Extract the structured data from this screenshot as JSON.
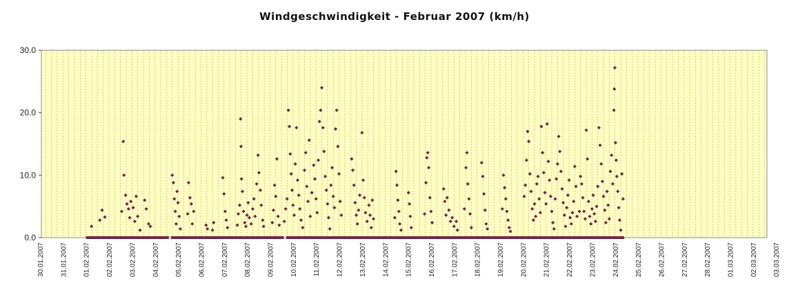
{
  "chart_data": {
    "type": "scatter",
    "title": "Windgeschwindigkeit - Februar 2007 (km/h)",
    "xlabel": "",
    "ylabel": "",
    "ylim": [
      0,
      30
    ],
    "y_ticks": [
      "0.0",
      "10.0",
      "20.0",
      "30.0"
    ],
    "x_tick_labels": [
      "30.01.2007",
      "31.01.2007",
      "01.02.2007",
      "02.02.2007",
      "03.02.2007",
      "04.02.2007",
      "05.02.2007",
      "06.02.2007",
      "07.02.2007",
      "08.02.2007",
      "09.02.2007",
      "10.02.2007",
      "11.02.2007",
      "12.02.2007",
      "13.02.2007",
      "14.02.2007",
      "15.02.2007",
      "16.02.2007",
      "17.02.2007",
      "18.02.2007",
      "19.02.2007",
      "20.02.2007",
      "21.02.2007",
      "22.02.2007",
      "23.02.2007",
      "24.02.2007",
      "25.02.2007",
      "26.02.2007",
      "27.02.2007",
      "28.02.2007",
      "01.03.2007",
      "02.03.2007",
      "03.03.2007"
    ],
    "x_range_days": [
      0,
      32
    ],
    "grid": "vertical dashed every 0.25 day",
    "legend": "none",
    "colors": {
      "plot_background": "#ffffc0",
      "marker": "#7a1f4f",
      "grid": "#a0a0a0"
    },
    "series": [
      {
        "day_offset_values": [
          [
            2.24,
            1.8
          ],
          [
            2.6,
            2.8
          ],
          [
            2.7,
            4.4
          ],
          [
            2.82,
            3.3
          ],
          [
            3.55,
            4.2
          ],
          [
            3.62,
            15.4
          ],
          [
            3.65,
            10.0
          ],
          [
            3.72,
            6.8
          ],
          [
            3.78,
            5.4
          ],
          [
            3.85,
            4.6
          ],
          [
            3.9,
            3.2
          ],
          [
            3.95,
            5.8
          ],
          [
            4.05,
            4.8
          ],
          [
            4.12,
            2.6
          ],
          [
            4.18,
            6.6
          ],
          [
            4.25,
            3.4
          ],
          [
            4.35,
            1.2
          ],
          [
            4.55,
            6.0
          ],
          [
            4.62,
            4.6
          ],
          [
            4.72,
            2.2
          ],
          [
            4.8,
            1.8
          ],
          [
            5.75,
            10.0
          ],
          [
            5.8,
            8.8
          ],
          [
            5.84,
            6.2
          ],
          [
            5.88,
            4.2
          ],
          [
            5.92,
            2.2
          ],
          [
            5.96,
            7.4
          ],
          [
            6.0,
            5.6
          ],
          [
            6.05,
            3.4
          ],
          [
            6.1,
            1.4
          ],
          [
            6.42,
            3.8
          ],
          [
            6.46,
            8.8
          ],
          [
            6.52,
            6.4
          ],
          [
            6.58,
            5.4
          ],
          [
            6.62,
            2.2
          ],
          [
            6.68,
            4.2
          ],
          [
            7.22,
            2.0
          ],
          [
            7.28,
            1.4
          ],
          [
            7.5,
            1.2
          ],
          [
            7.55,
            2.4
          ],
          [
            7.95,
            9.6
          ],
          [
            8.0,
            7.0
          ],
          [
            8.05,
            4.2
          ],
          [
            8.1,
            2.8
          ],
          [
            8.15,
            1.6
          ],
          [
            8.58,
            2.0
          ],
          [
            8.62,
            3.8
          ],
          [
            8.68,
            5.2
          ],
          [
            8.72,
            19.0
          ],
          [
            8.74,
            14.6
          ],
          [
            8.76,
            9.4
          ],
          [
            8.8,
            7.4
          ],
          [
            8.85,
            4.2
          ],
          [
            8.9,
            2.4
          ],
          [
            8.95,
            1.8
          ],
          [
            9.0,
            3.6
          ],
          [
            9.05,
            5.6
          ],
          [
            9.1,
            3.2
          ],
          [
            9.18,
            2.2
          ],
          [
            9.25,
            4.6
          ],
          [
            9.3,
            6.2
          ],
          [
            9.35,
            3.4
          ],
          [
            9.42,
            8.6
          ],
          [
            9.48,
            13.2
          ],
          [
            9.52,
            10.4
          ],
          [
            9.58,
            7.6
          ],
          [
            9.62,
            5.2
          ],
          [
            9.68,
            2.8
          ],
          [
            9.72,
            1.8
          ],
          [
            10.1,
            2.4
          ],
          [
            10.15,
            4.4
          ],
          [
            10.2,
            8.4
          ],
          [
            10.25,
            6.6
          ],
          [
            10.3,
            12.6
          ],
          [
            10.35,
            3.4
          ],
          [
            10.4,
            2.0
          ],
          [
            10.62,
            2.6
          ],
          [
            10.68,
            4.6
          ],
          [
            10.74,
            6.2
          ],
          [
            10.8,
            20.4
          ],
          [
            10.84,
            17.8
          ],
          [
            10.88,
            13.4
          ],
          [
            10.92,
            10.2
          ],
          [
            10.96,
            7.6
          ],
          [
            11.0,
            5.2
          ],
          [
            11.05,
            3.6
          ],
          [
            11.1,
            11.8
          ],
          [
            11.15,
            17.6
          ],
          [
            11.2,
            9.2
          ],
          [
            11.25,
            6.8
          ],
          [
            11.3,
            4.6
          ],
          [
            11.35,
            2.8
          ],
          [
            11.42,
            1.6
          ],
          [
            11.5,
            10.8
          ],
          [
            11.55,
            13.6
          ],
          [
            11.6,
            8.2
          ],
          [
            11.65,
            5.8
          ],
          [
            11.7,
            15.6
          ],
          [
            11.75,
            3.4
          ],
          [
            11.82,
            7.2
          ],
          [
            11.9,
            11.6
          ],
          [
            11.95,
            9.4
          ],
          [
            12.0,
            6.2
          ],
          [
            12.05,
            4.0
          ],
          [
            12.1,
            12.4
          ],
          [
            12.15,
            18.6
          ],
          [
            12.2,
            20.4
          ],
          [
            12.25,
            24.0
          ],
          [
            12.3,
            17.6
          ],
          [
            12.35,
            13.8
          ],
          [
            12.4,
            9.8
          ],
          [
            12.45,
            7.6
          ],
          [
            12.5,
            5.4
          ],
          [
            12.55,
            3.2
          ],
          [
            12.6,
            1.4
          ],
          [
            12.65,
            8.4
          ],
          [
            12.7,
            11.2
          ],
          [
            12.75,
            6.6
          ],
          [
            12.8,
            4.8
          ],
          [
            12.85,
            17.4
          ],
          [
            12.9,
            20.4
          ],
          [
            12.95,
            14.6
          ],
          [
            13.0,
            10.2
          ],
          [
            13.05,
            5.8
          ],
          [
            13.1,
            3.6
          ],
          [
            13.55,
            12.6
          ],
          [
            13.6,
            10.8
          ],
          [
            13.65,
            8.4
          ],
          [
            13.7,
            5.6
          ],
          [
            13.75,
            3.6
          ],
          [
            13.8,
            2.2
          ],
          [
            13.85,
            4.4
          ],
          [
            13.9,
            6.8
          ],
          [
            14.0,
            16.8
          ],
          [
            14.05,
            9.2
          ],
          [
            14.1,
            6.4
          ],
          [
            14.15,
            4.0
          ],
          [
            14.22,
            2.6
          ],
          [
            14.3,
            5.2
          ],
          [
            14.35,
            3.6
          ],
          [
            14.4,
            1.6
          ],
          [
            14.45,
            6.0
          ],
          [
            14.5,
            3.0
          ],
          [
            15.42,
            3.2
          ],
          [
            15.48,
            10.6
          ],
          [
            15.52,
            8.4
          ],
          [
            15.56,
            6.0
          ],
          [
            15.6,
            4.2
          ],
          [
            15.64,
            2.2
          ],
          [
            15.7,
            1.2
          ],
          [
            16.02,
            7.2
          ],
          [
            16.06,
            5.4
          ],
          [
            16.1,
            3.4
          ],
          [
            16.14,
            1.6
          ],
          [
            16.72,
            3.8
          ],
          [
            16.78,
            8.8
          ],
          [
            16.82,
            12.8
          ],
          [
            16.86,
            13.6
          ],
          [
            16.9,
            11.2
          ],
          [
            16.95,
            6.4
          ],
          [
            17.0,
            4.2
          ],
          [
            17.05,
            2.4
          ],
          [
            17.55,
            7.8
          ],
          [
            17.6,
            5.8
          ],
          [
            17.65,
            3.6
          ],
          [
            17.7,
            6.4
          ],
          [
            17.78,
            4.4
          ],
          [
            17.85,
            2.6
          ],
          [
            17.92,
            3.2
          ],
          [
            18.0,
            1.8
          ],
          [
            18.1,
            2.6
          ],
          [
            18.15,
            1.2
          ],
          [
            18.45,
            4.6
          ],
          [
            18.52,
            11.2
          ],
          [
            18.56,
            13.6
          ],
          [
            18.6,
            8.6
          ],
          [
            18.65,
            6.2
          ],
          [
            18.7,
            3.8
          ],
          [
            18.75,
            1.6
          ],
          [
            19.2,
            12.0
          ],
          [
            19.25,
            9.8
          ],
          [
            19.3,
            7.0
          ],
          [
            19.35,
            4.4
          ],
          [
            19.4,
            2.2
          ],
          [
            19.45,
            1.4
          ],
          [
            20.1,
            4.6
          ],
          [
            20.15,
            10.0
          ],
          [
            20.2,
            8.0
          ],
          [
            20.25,
            6.2
          ],
          [
            20.3,
            4.2
          ],
          [
            20.35,
            2.8
          ],
          [
            20.4,
            1.6
          ],
          [
            20.45,
            1.0
          ],
          [
            21.05,
            6.6
          ],
          [
            21.1,
            8.4
          ],
          [
            21.15,
            12.4
          ],
          [
            21.2,
            17.0
          ],
          [
            21.25,
            15.4
          ],
          [
            21.3,
            10.2
          ],
          [
            21.35,
            7.4
          ],
          [
            21.4,
            4.6
          ],
          [
            21.45,
            2.8
          ],
          [
            21.5,
            5.4
          ],
          [
            21.55,
            3.4
          ],
          [
            21.6,
            8.6
          ],
          [
            21.65,
            9.8
          ],
          [
            21.7,
            6.2
          ],
          [
            21.75,
            4.0
          ],
          [
            21.8,
            17.8
          ],
          [
            21.85,
            13.6
          ],
          [
            21.9,
            10.4
          ],
          [
            21.95,
            7.2
          ],
          [
            22.0,
            5.4
          ],
          [
            22.05,
            18.2
          ],
          [
            22.1,
            12.2
          ],
          [
            22.15,
            9.2
          ],
          [
            22.2,
            6.6
          ],
          [
            22.25,
            4.2
          ],
          [
            22.3,
            2.4
          ],
          [
            22.35,
            1.4
          ],
          [
            22.4,
            6.2
          ],
          [
            22.45,
            9.4
          ],
          [
            22.5,
            11.8
          ],
          [
            22.55,
            16.2
          ],
          [
            22.6,
            13.8
          ],
          [
            22.65,
            10.6
          ],
          [
            22.7,
            7.8
          ],
          [
            22.75,
            5.6
          ],
          [
            22.8,
            3.6
          ],
          [
            22.85,
            1.8
          ],
          [
            22.9,
            4.8
          ],
          [
            22.95,
            6.8
          ],
          [
            23.0,
            9.2
          ],
          [
            23.05,
            3.2
          ],
          [
            23.1,
            2.2
          ],
          [
            23.15,
            4.0
          ],
          [
            23.2,
            5.8
          ],
          [
            23.25,
            11.4
          ],
          [
            23.3,
            8.2
          ],
          [
            23.35,
            3.4
          ],
          [
            23.45,
            4.2
          ],
          [
            23.5,
            9.8
          ],
          [
            23.55,
            8.6
          ],
          [
            23.6,
            6.4
          ],
          [
            23.65,
            4.2
          ],
          [
            23.7,
            3.0
          ],
          [
            23.75,
            17.2
          ],
          [
            23.8,
            12.6
          ],
          [
            23.85,
            5.8
          ],
          [
            23.9,
            3.4
          ],
          [
            23.95,
            2.2
          ],
          [
            24.0,
            4.6
          ],
          [
            24.05,
            6.8
          ],
          [
            24.1,
            3.8
          ],
          [
            24.15,
            2.6
          ],
          [
            24.2,
            5.0
          ],
          [
            24.25,
            8.2
          ],
          [
            24.3,
            17.6
          ],
          [
            24.35,
            14.8
          ],
          [
            24.4,
            11.8
          ],
          [
            24.45,
            9.0
          ],
          [
            24.5,
            6.6
          ],
          [
            24.55,
            4.4
          ],
          [
            24.6,
            2.4
          ],
          [
            24.65,
            7.4
          ],
          [
            24.7,
            5.2
          ],
          [
            24.75,
            3.0
          ],
          [
            24.8,
            10.6
          ],
          [
            24.85,
            13.2
          ],
          [
            24.9,
            8.6
          ],
          [
            24.95,
            20.4
          ],
          [
            24.97,
            23.8
          ],
          [
            24.99,
            27.2
          ],
          [
            25.02,
            15.2
          ],
          [
            25.05,
            12.4
          ],
          [
            25.08,
            9.8
          ],
          [
            25.12,
            7.4
          ],
          [
            25.16,
            4.8
          ],
          [
            25.2,
            2.8
          ],
          [
            25.25,
            1.2
          ],
          [
            25.3,
            10.2
          ],
          [
            25.35,
            6.2
          ]
        ],
        "description_note": ""
      }
    ]
  }
}
